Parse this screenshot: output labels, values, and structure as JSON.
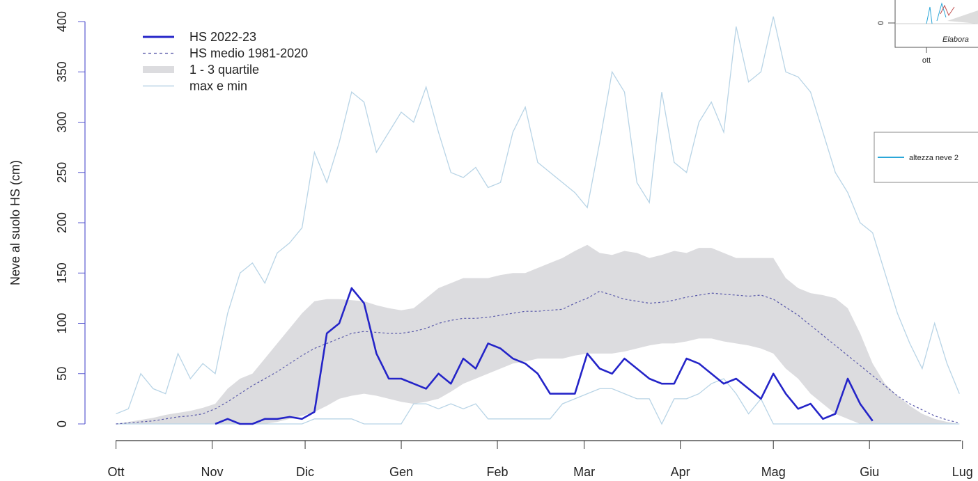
{
  "chart_data": {
    "type": "line",
    "y_label": "Neve al suolo HS (cm)",
    "x": [
      0,
      4,
      8,
      12,
      16,
      20,
      24,
      28,
      32,
      36,
      40,
      44,
      48,
      52,
      56,
      60,
      64,
      68,
      72,
      76,
      80,
      84,
      88,
      92,
      96,
      100,
      104,
      108,
      112,
      116,
      120,
      124,
      128,
      132,
      136,
      140,
      144,
      148,
      152,
      156,
      160,
      164,
      168,
      172,
      176,
      180,
      184,
      188,
      192,
      196,
      200,
      204,
      208,
      212,
      216,
      220,
      224,
      228,
      232,
      236,
      240,
      244,
      248,
      252,
      256,
      260,
      264,
      268,
      272
    ],
    "xlim": [
      -10,
      278
    ],
    "xticks": [
      {
        "value": 0,
        "label": "Ott"
      },
      {
        "value": 31,
        "label": "Nov"
      },
      {
        "value": 61,
        "label": "Dic"
      },
      {
        "value": 92,
        "label": "Gen"
      },
      {
        "value": 123,
        "label": "Feb"
      },
      {
        "value": 151,
        "label": "Mar"
      },
      {
        "value": 182,
        "label": "Apr"
      },
      {
        "value": 212,
        "label": "Mag"
      },
      {
        "value": 243,
        "label": "Giu"
      },
      {
        "value": 273,
        "label": "Lug"
      }
    ],
    "ylim": [
      0,
      400
    ],
    "yticks": [
      0,
      50,
      100,
      150,
      200,
      250,
      300,
      350,
      400
    ],
    "series": [
      {
        "name": "HS 2022-23",
        "color": "#2424c8",
        "style": "solid",
        "values": [
          null,
          null,
          null,
          null,
          null,
          null,
          null,
          null,
          0,
          5,
          0,
          0,
          5,
          5,
          7,
          5,
          12,
          90,
          100,
          135,
          120,
          70,
          45,
          45,
          40,
          35,
          50,
          40,
          65,
          55,
          80,
          75,
          65,
          60,
          50,
          30,
          30,
          30,
          70,
          55,
          50,
          65,
          55,
          45,
          40,
          40,
          65,
          60,
          50,
          40,
          45,
          35,
          25,
          50,
          30,
          15,
          20,
          5,
          10,
          45,
          20,
          3,
          null,
          null,
          null,
          null,
          null,
          null,
          null
        ]
      },
      {
        "name": "HS medio 1981-2020",
        "color": "#5a5aaa",
        "style": "dashed",
        "values": [
          0,
          1,
          2,
          3,
          5,
          7,
          8,
          10,
          15,
          22,
          30,
          38,
          45,
          52,
          60,
          68,
          75,
          80,
          85,
          90,
          92,
          91,
          90,
          90,
          92,
          95,
          100,
          103,
          105,
          105,
          106,
          108,
          110,
          112,
          112,
          113,
          114,
          120,
          125,
          132,
          128,
          124,
          122,
          120,
          121,
          123,
          126,
          128,
          130,
          129,
          128,
          127,
          128,
          124,
          116,
          108,
          98,
          88,
          78,
          68,
          58,
          48,
          38,
          28,
          20,
          14,
          8,
          4,
          1
        ]
      },
      {
        "name": "1 - 3 quartile",
        "color": "#dcdcdf",
        "style": "band",
        "high": [
          0,
          2,
          4,
          6,
          9,
          11,
          13,
          16,
          20,
          35,
          45,
          50,
          65,
          80,
          95,
          110,
          122,
          124,
          124,
          123,
          122,
          118,
          115,
          113,
          115,
          125,
          135,
          140,
          145,
          145,
          145,
          148,
          150,
          150,
          155,
          160,
          165,
          172,
          178,
          170,
          168,
          172,
          170,
          165,
          168,
          172,
          170,
          175,
          175,
          170,
          165,
          165,
          165,
          165,
          145,
          135,
          130,
          128,
          125,
          115,
          90,
          60,
          40,
          28,
          18,
          10,
          5,
          2,
          0
        ],
        "low": [
          0,
          0,
          0,
          0,
          0,
          0,
          0,
          0,
          0,
          0,
          0,
          0,
          0,
          2,
          5,
          8,
          12,
          18,
          25,
          28,
          30,
          28,
          25,
          22,
          20,
          22,
          25,
          32,
          40,
          45,
          50,
          55,
          60,
          62,
          65,
          65,
          65,
          68,
          70,
          70,
          70,
          72,
          75,
          78,
          80,
          80,
          82,
          85,
          85,
          82,
          80,
          78,
          75,
          70,
          55,
          45,
          30,
          20,
          10,
          5,
          0,
          0,
          0,
          0,
          0,
          0,
          0,
          0,
          0
        ]
      },
      {
        "name": "max e min",
        "color": "#b8d4e6",
        "style": "lines",
        "high": [
          10,
          15,
          50,
          35,
          30,
          70,
          45,
          60,
          50,
          110,
          150,
          160,
          140,
          170,
          180,
          195,
          270,
          240,
          280,
          330,
          320,
          270,
          290,
          310,
          300,
          335,
          290,
          250,
          245,
          255,
          235,
          240,
          290,
          315,
          260,
          250,
          240,
          230,
          215,
          280,
          350,
          330,
          240,
          220,
          330,
          260,
          250,
          300,
          320,
          290,
          395,
          340,
          350,
          405,
          350,
          345,
          330,
          290,
          250,
          230,
          200,
          190,
          150,
          110,
          80,
          55,
          100,
          60,
          30
        ],
        "low": [
          0,
          0,
          0,
          0,
          0,
          0,
          0,
          0,
          0,
          0,
          0,
          0,
          0,
          0,
          0,
          0,
          5,
          5,
          5,
          5,
          0,
          0,
          0,
          0,
          20,
          20,
          15,
          20,
          15,
          20,
          5,
          5,
          5,
          5,
          5,
          5,
          20,
          25,
          30,
          35,
          35,
          30,
          25,
          25,
          0,
          25,
          25,
          30,
          40,
          45,
          30,
          10,
          25,
          0,
          0,
          0,
          0,
          0,
          0,
          0,
          0,
          0,
          0,
          0,
          0,
          0,
          0,
          0,
          0
        ]
      }
    ],
    "inset": {
      "y_tick": "0",
      "x_tick": "ott",
      "note": "Elabora",
      "legend": "altezza neve 2"
    }
  }
}
